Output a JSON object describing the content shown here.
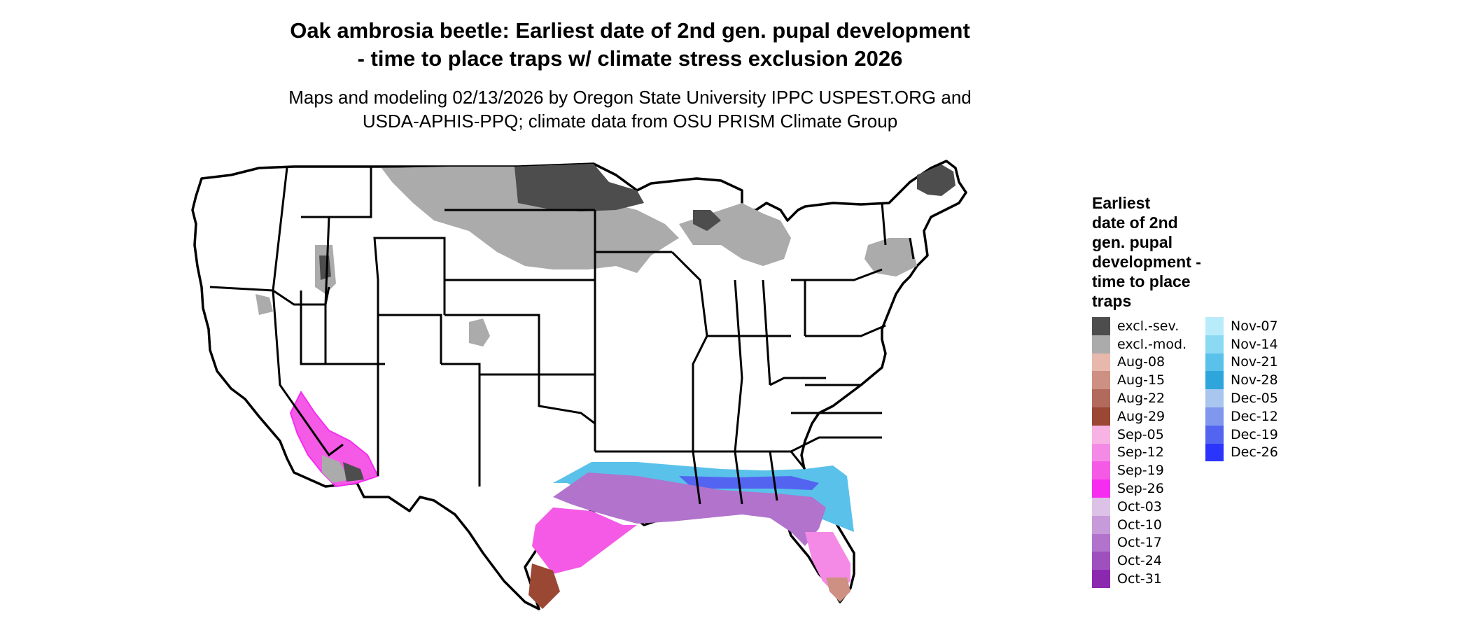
{
  "title": {
    "line1": "Oak ambrosia beetle: Earliest date of 2nd gen. pupal development",
    "line2": "- time to place traps w/ climate stress exclusion 2026"
  },
  "subtitle": {
    "line1": "Maps and modeling 02/13/2026 by Oregon State University IPPC USPEST.ORG and",
    "line2": "USDA-APHIS-PPQ; climate data from OSU PRISM Climate Group"
  },
  "legend": {
    "title_lines": [
      "Earliest",
      "date of 2nd",
      "gen. pupal",
      "development -",
      "time to place",
      "traps"
    ],
    "column1": [
      {
        "label": "excl.-sev.",
        "color": "#4d4d4d"
      },
      {
        "label": "excl.-mod.",
        "color": "#ababab"
      },
      {
        "label": "Aug-08",
        "color": "#e8b8ad"
      },
      {
        "label": "Aug-15",
        "color": "#cd9082"
      },
      {
        "label": "Aug-22",
        "color": "#b26a5c"
      },
      {
        "label": "Aug-29",
        "color": "#9a4733"
      },
      {
        "label": "Sep-05",
        "color": "#f7b3e3"
      },
      {
        "label": "Sep-12",
        "color": "#f58ae6"
      },
      {
        "label": "Sep-19",
        "color": "#f55ae6"
      },
      {
        "label": "Sep-26",
        "color": "#f62cf0"
      },
      {
        "label": "Oct-03",
        "color": "#dcc2e6"
      },
      {
        "label": "Oct-10",
        "color": "#c79ad9"
      },
      {
        "label": "Oct-17",
        "color": "#b173cc"
      },
      {
        "label": "Oct-24",
        "color": "#9f50bf"
      },
      {
        "label": "Oct-31",
        "color": "#8c28b0"
      }
    ],
    "column2": [
      {
        "label": "Nov-07",
        "color": "#b9ecfb"
      },
      {
        "label": "Nov-14",
        "color": "#8cd9f3"
      },
      {
        "label": "Nov-21",
        "color": "#5ac1ea"
      },
      {
        "label": "Nov-28",
        "color": "#2ea6dc"
      },
      {
        "label": "Dec-05",
        "color": "#a9c6ee"
      },
      {
        "label": "Dec-12",
        "color": "#7f97ec"
      },
      {
        "label": "Dec-19",
        "color": "#5365f0"
      },
      {
        "label": "Dec-26",
        "color": "#2a34fb"
      }
    ]
  }
}
